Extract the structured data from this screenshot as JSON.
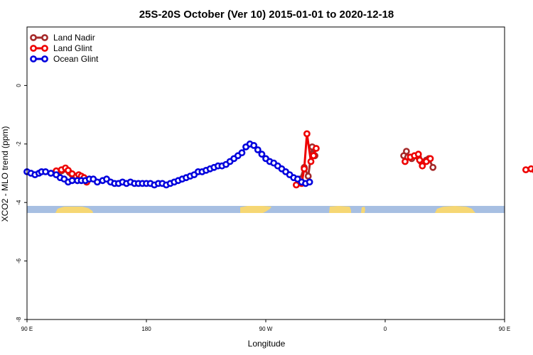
{
  "chart_data": {
    "type": "line",
    "title": "25S-20S October (Ver 10)   2015-01-01 to 2020-12-18",
    "xlabel": "Longitude",
    "ylabel": "XCO2 - MLO trend (ppm)",
    "xlim": [
      90,
      450
    ],
    "ylim": [
      -8,
      2
    ],
    "grid": false,
    "legend_position": "top-left",
    "x_ticks": [
      {
        "value": 90,
        "label": "90 E"
      },
      {
        "value": 180,
        "label": "180"
      },
      {
        "value": 270,
        "label": "90 W"
      },
      {
        "value": 360,
        "label": "0"
      },
      {
        "value": 450,
        "label": "90 E"
      },
      {
        "value": 540,
        "label": "180"
      }
    ],
    "y_ticks": [
      {
        "value": 0,
        "label": "0"
      },
      {
        "value": -2,
        "label": "-2"
      },
      {
        "value": -4,
        "label": "-4"
      },
      {
        "value": -6,
        "label": "-6"
      },
      {
        "value": -8,
        "label": "-8"
      }
    ],
    "series": [
      {
        "name": "Land Nadir",
        "color": "#a52a2a",
        "segments": [
          [
            [
              114,
              -2.95
            ],
            [
              116,
              -2.92
            ],
            [
              122,
              -2.97
            ],
            [
              124,
              -3.05
            ],
            [
              127,
              -3.1
            ],
            [
              128,
              -3.25
            ],
            [
              131,
              -3.15
            ],
            [
              132,
              -3.15
            ],
            [
              135,
              -3.3
            ]
          ],
          [
            [
              296,
              -3.2
            ],
            [
              299,
              -2.8
            ],
            [
              302,
              -3.1
            ],
            [
              305,
              -2.1
            ],
            [
              307,
              -2.4
            ]
          ],
          [
            [
              374,
              -2.4
            ],
            [
              376,
              -2.25
            ],
            [
              377,
              -2.45
            ],
            [
              380,
              -2.5
            ],
            [
              385,
              -2.45
            ],
            [
              387,
              -2.6
            ],
            [
              391,
              -2.55
            ],
            [
              393,
              -2.5
            ],
            [
              396,
              -2.8
            ]
          ],
          [
            [
              475,
              -3.05
            ],
            [
              479,
              -3.15
            ],
            [
              481,
              -3.3
            ],
            [
              484,
              -3.2
            ],
            [
              487,
              -3.3
            ],
            [
              490,
              -3.3
            ]
          ]
        ]
      },
      {
        "name": "Land Glint",
        "color": "#ee0000",
        "segments": [
          [
            [
              112,
              -2.92
            ],
            [
              116,
              -2.88
            ],
            [
              119,
              -2.82
            ],
            [
              121,
              -2.9
            ],
            [
              124,
              -3.02
            ],
            [
              129,
              -3.05
            ],
            [
              131,
              -3.1
            ],
            [
              133,
              -3.15
            ],
            [
              135,
              -3.3
            ]
          ],
          [
            [
              293,
              -3.4
            ],
            [
              297,
              -3.35
            ],
            [
              299,
              -2.85
            ],
            [
              301,
              -1.65
            ],
            [
              304,
              -2.6
            ],
            [
              306,
              -2.4
            ],
            [
              308,
              -2.15
            ]
          ],
          [
            [
              375,
              -2.6
            ],
            [
              379,
              -2.45
            ],
            [
              382,
              -2.4
            ],
            [
              385,
              -2.35
            ],
            [
              386,
              -2.55
            ],
            [
              388,
              -2.75
            ],
            [
              391,
              -2.6
            ],
            [
              394,
              -2.5
            ]
          ],
          [
            [
              466,
              -2.88
            ],
            [
              470,
              -2.85
            ],
            [
              473,
              -2.9
            ],
            [
              476,
              -3.0
            ],
            [
              479,
              -3.1
            ],
            [
              482,
              -3.05
            ],
            [
              485,
              -3.15
            ],
            [
              488,
              -3.3
            ],
            [
              490,
              -3.3
            ],
            [
              496,
              -3.3
            ]
          ]
        ]
      },
      {
        "name": "Ocean Glint",
        "color": "#0000dd",
        "segments": [
          [
            [
              90,
              -2.95
            ],
            [
              93,
              -3.0
            ],
            [
              96,
              -3.05
            ],
            [
              99,
              -3.0
            ],
            [
              101,
              -2.95
            ],
            [
              104,
              -2.95
            ],
            [
              108,
              -3.0
            ],
            [
              112,
              -3.05
            ],
            [
              115,
              -3.15
            ],
            [
              118,
              -3.2
            ],
            [
              121,
              -3.3
            ],
            [
              124,
              -3.25
            ],
            [
              128,
              -3.25
            ],
            [
              131,
              -3.25
            ],
            [
              134,
              -3.25
            ],
            [
              137,
              -3.2
            ],
            [
              140,
              -3.2
            ],
            [
              143,
              -3.3
            ],
            [
              147,
              -3.25
            ],
            [
              150,
              -3.2
            ],
            [
              153,
              -3.3
            ],
            [
              156,
              -3.35
            ],
            [
              159,
              -3.35
            ],
            [
              162,
              -3.3
            ],
            [
              165,
              -3.35
            ],
            [
              168,
              -3.3
            ],
            [
              171,
              -3.35
            ],
            [
              174,
              -3.35
            ],
            [
              177,
              -3.35
            ],
            [
              180,
              -3.35
            ],
            [
              183,
              -3.35
            ],
            [
              186,
              -3.4
            ],
            [
              189,
              -3.35
            ],
            [
              192,
              -3.35
            ],
            [
              195,
              -3.4
            ],
            [
              198,
              -3.35
            ],
            [
              201,
              -3.3
            ],
            [
              204,
              -3.25
            ],
            [
              207,
              -3.2
            ],
            [
              210,
              -3.15
            ],
            [
              213,
              -3.1
            ],
            [
              216,
              -3.05
            ],
            [
              219,
              -2.95
            ],
            [
              222,
              -2.95
            ],
            [
              225,
              -2.9
            ],
            [
              228,
              -2.85
            ],
            [
              231,
              -2.8
            ],
            [
              234,
              -2.75
            ],
            [
              237,
              -2.75
            ],
            [
              240,
              -2.7
            ],
            [
              243,
              -2.6
            ],
            [
              246,
              -2.5
            ],
            [
              249,
              -2.4
            ],
            [
              252,
              -2.3
            ],
            [
              255,
              -2.1
            ],
            [
              258,
              -2.0
            ],
            [
              261,
              -2.05
            ],
            [
              264,
              -2.2
            ],
            [
              267,
              -2.35
            ],
            [
              270,
              -2.5
            ],
            [
              273,
              -2.6
            ],
            [
              276,
              -2.65
            ],
            [
              279,
              -2.75
            ],
            [
              282,
              -2.85
            ],
            [
              285,
              -2.95
            ],
            [
              288,
              -3.05
            ],
            [
              291,
              -3.15
            ],
            [
              294,
              -3.2
            ],
            [
              297,
              -3.3
            ],
            [
              300,
              -3.35
            ],
            [
              303,
              -3.3
            ]
          ]
        ]
      }
    ]
  }
}
